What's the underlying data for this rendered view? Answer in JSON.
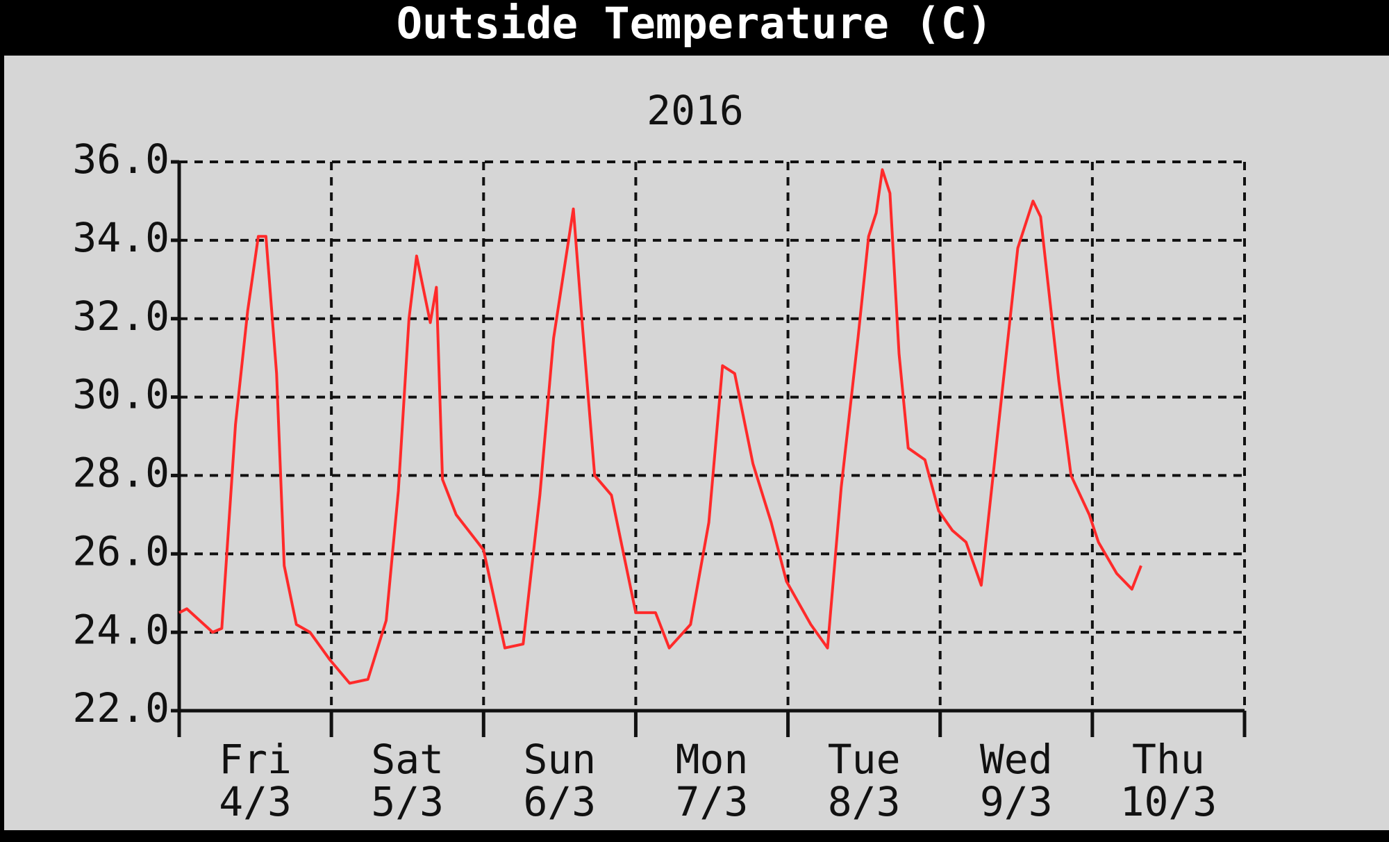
{
  "chart_data": {
    "type": "line",
    "title": "Outside Temperature (C)",
    "subtitle": "2016",
    "day_labels": [
      {
        "day": "Fri",
        "date": "4/3"
      },
      {
        "day": "Sat",
        "date": "5/3"
      },
      {
        "day": "Sun",
        "date": "6/3"
      },
      {
        "day": "Mon",
        "date": "7/3"
      },
      {
        "day": "Tue",
        "date": "8/3"
      },
      {
        "day": "Wed",
        "date": "9/3"
      },
      {
        "day": "Thu",
        "date": "10/3"
      }
    ],
    "x": [
      0,
      0.05,
      0.22,
      0.28,
      0.37,
      0.45,
      0.52,
      0.57,
      0.64,
      0.69,
      0.77,
      0.86,
      0.99,
      1.12,
      1.24,
      1.36,
      1.44,
      1.51,
      1.56,
      1.65,
      1.69,
      1.73,
      1.82,
      2.0,
      2.14,
      2.26,
      2.37,
      2.46,
      2.59,
      2.65,
      2.73,
      2.84,
      3.0,
      3.13,
      3.22,
      3.36,
      3.48,
      3.57,
      3.65,
      3.77,
      3.89,
      3.99,
      4.15,
      4.26,
      4.35,
      4.46,
      4.53,
      4.58,
      4.62,
      4.67,
      4.73,
      4.79,
      4.9,
      4.99,
      5.08,
      5.17,
      5.27,
      5.37,
      5.51,
      5.61,
      5.66,
      5.78,
      5.86,
      5.98,
      6.04,
      6.16,
      6.26,
      6.32
    ],
    "series": [
      {
        "color": "#ff2a2a",
        "values": [
          24.5,
          24.6,
          24.0,
          24.1,
          29.3,
          32.2,
          34.1,
          34.1,
          30.6,
          25.7,
          24.2,
          24.0,
          23.3,
          22.7,
          22.8,
          24.3,
          27.6,
          32.0,
          33.6,
          31.9,
          32.8,
          27.9,
          27.0,
          26.1,
          23.6,
          23.7,
          27.5,
          31.5,
          34.8,
          31.8,
          28.0,
          27.5,
          24.5,
          24.5,
          23.6,
          24.2,
          26.8,
          30.8,
          30.6,
          28.3,
          26.8,
          25.3,
          24.2,
          23.6,
          27.7,
          31.5,
          34.1,
          34.7,
          35.8,
          35.2,
          31.1,
          28.7,
          28.4,
          27.1,
          26.6,
          26.3,
          25.2,
          28.8,
          33.8,
          35.0,
          34.6,
          30.4,
          28.0,
          27.0,
          26.3,
          25.5,
          25.1,
          25.7
        ]
      }
    ],
    "xlim": [
      0,
      7
    ],
    "xticks": [
      0,
      1,
      2,
      3,
      4,
      5,
      6,
      7
    ],
    "ylim": [
      22,
      36
    ],
    "yticks": [
      {
        "value": 22,
        "label": "22.0"
      },
      {
        "value": 24,
        "label": "24.0"
      },
      {
        "value": 26,
        "label": "26.0"
      },
      {
        "value": 28,
        "label": "28.0"
      },
      {
        "value": 30,
        "label": "30.0"
      },
      {
        "value": 32,
        "label": "32.0"
      },
      {
        "value": 34,
        "label": "34.0"
      },
      {
        "value": 36,
        "label": "36.0"
      }
    ],
    "grid": true
  }
}
